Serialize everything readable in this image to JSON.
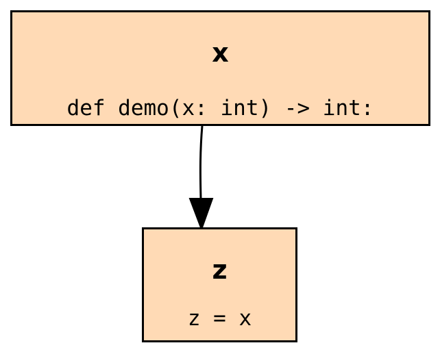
{
  "colors": {
    "node_fill": "#FFDAB5",
    "border": "#000000",
    "arrow": "#000000"
  },
  "nodes": [
    {
      "id": "x",
      "title": "x",
      "code": "def demo(x: int) -> int:"
    },
    {
      "id": "z",
      "title": "z",
      "code": "z = x"
    }
  ],
  "edges": [
    {
      "from": "x",
      "to": "z"
    }
  ]
}
